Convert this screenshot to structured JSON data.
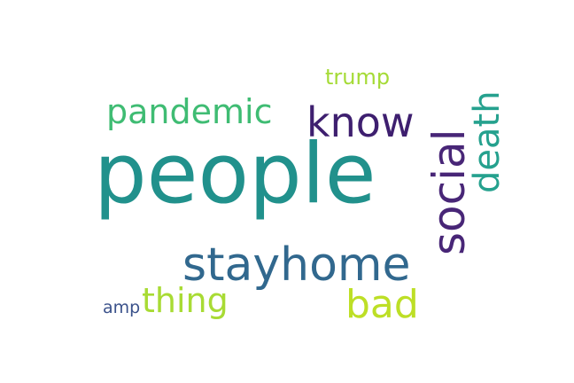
{
  "wordcloud": {
    "words": {
      "people": {
        "text": "people",
        "color": "#21918c"
      },
      "stayhome": {
        "text": "stayhome",
        "color": "#31688e"
      },
      "social": {
        "text": "social",
        "color": "#482677"
      },
      "death": {
        "text": "death",
        "color": "#25a18e"
      },
      "know": {
        "text": "know",
        "color": "#3e1f6f"
      },
      "pandemic": {
        "text": "pandemic",
        "color": "#3fbc73"
      },
      "bad": {
        "text": "bad",
        "color": "#bddf26"
      },
      "thing": {
        "text": "thing",
        "color": "#a8db34"
      },
      "trump": {
        "text": "trump",
        "color": "#a5db36"
      },
      "amp": {
        "text": "amp",
        "color": "#3b528b"
      }
    }
  }
}
